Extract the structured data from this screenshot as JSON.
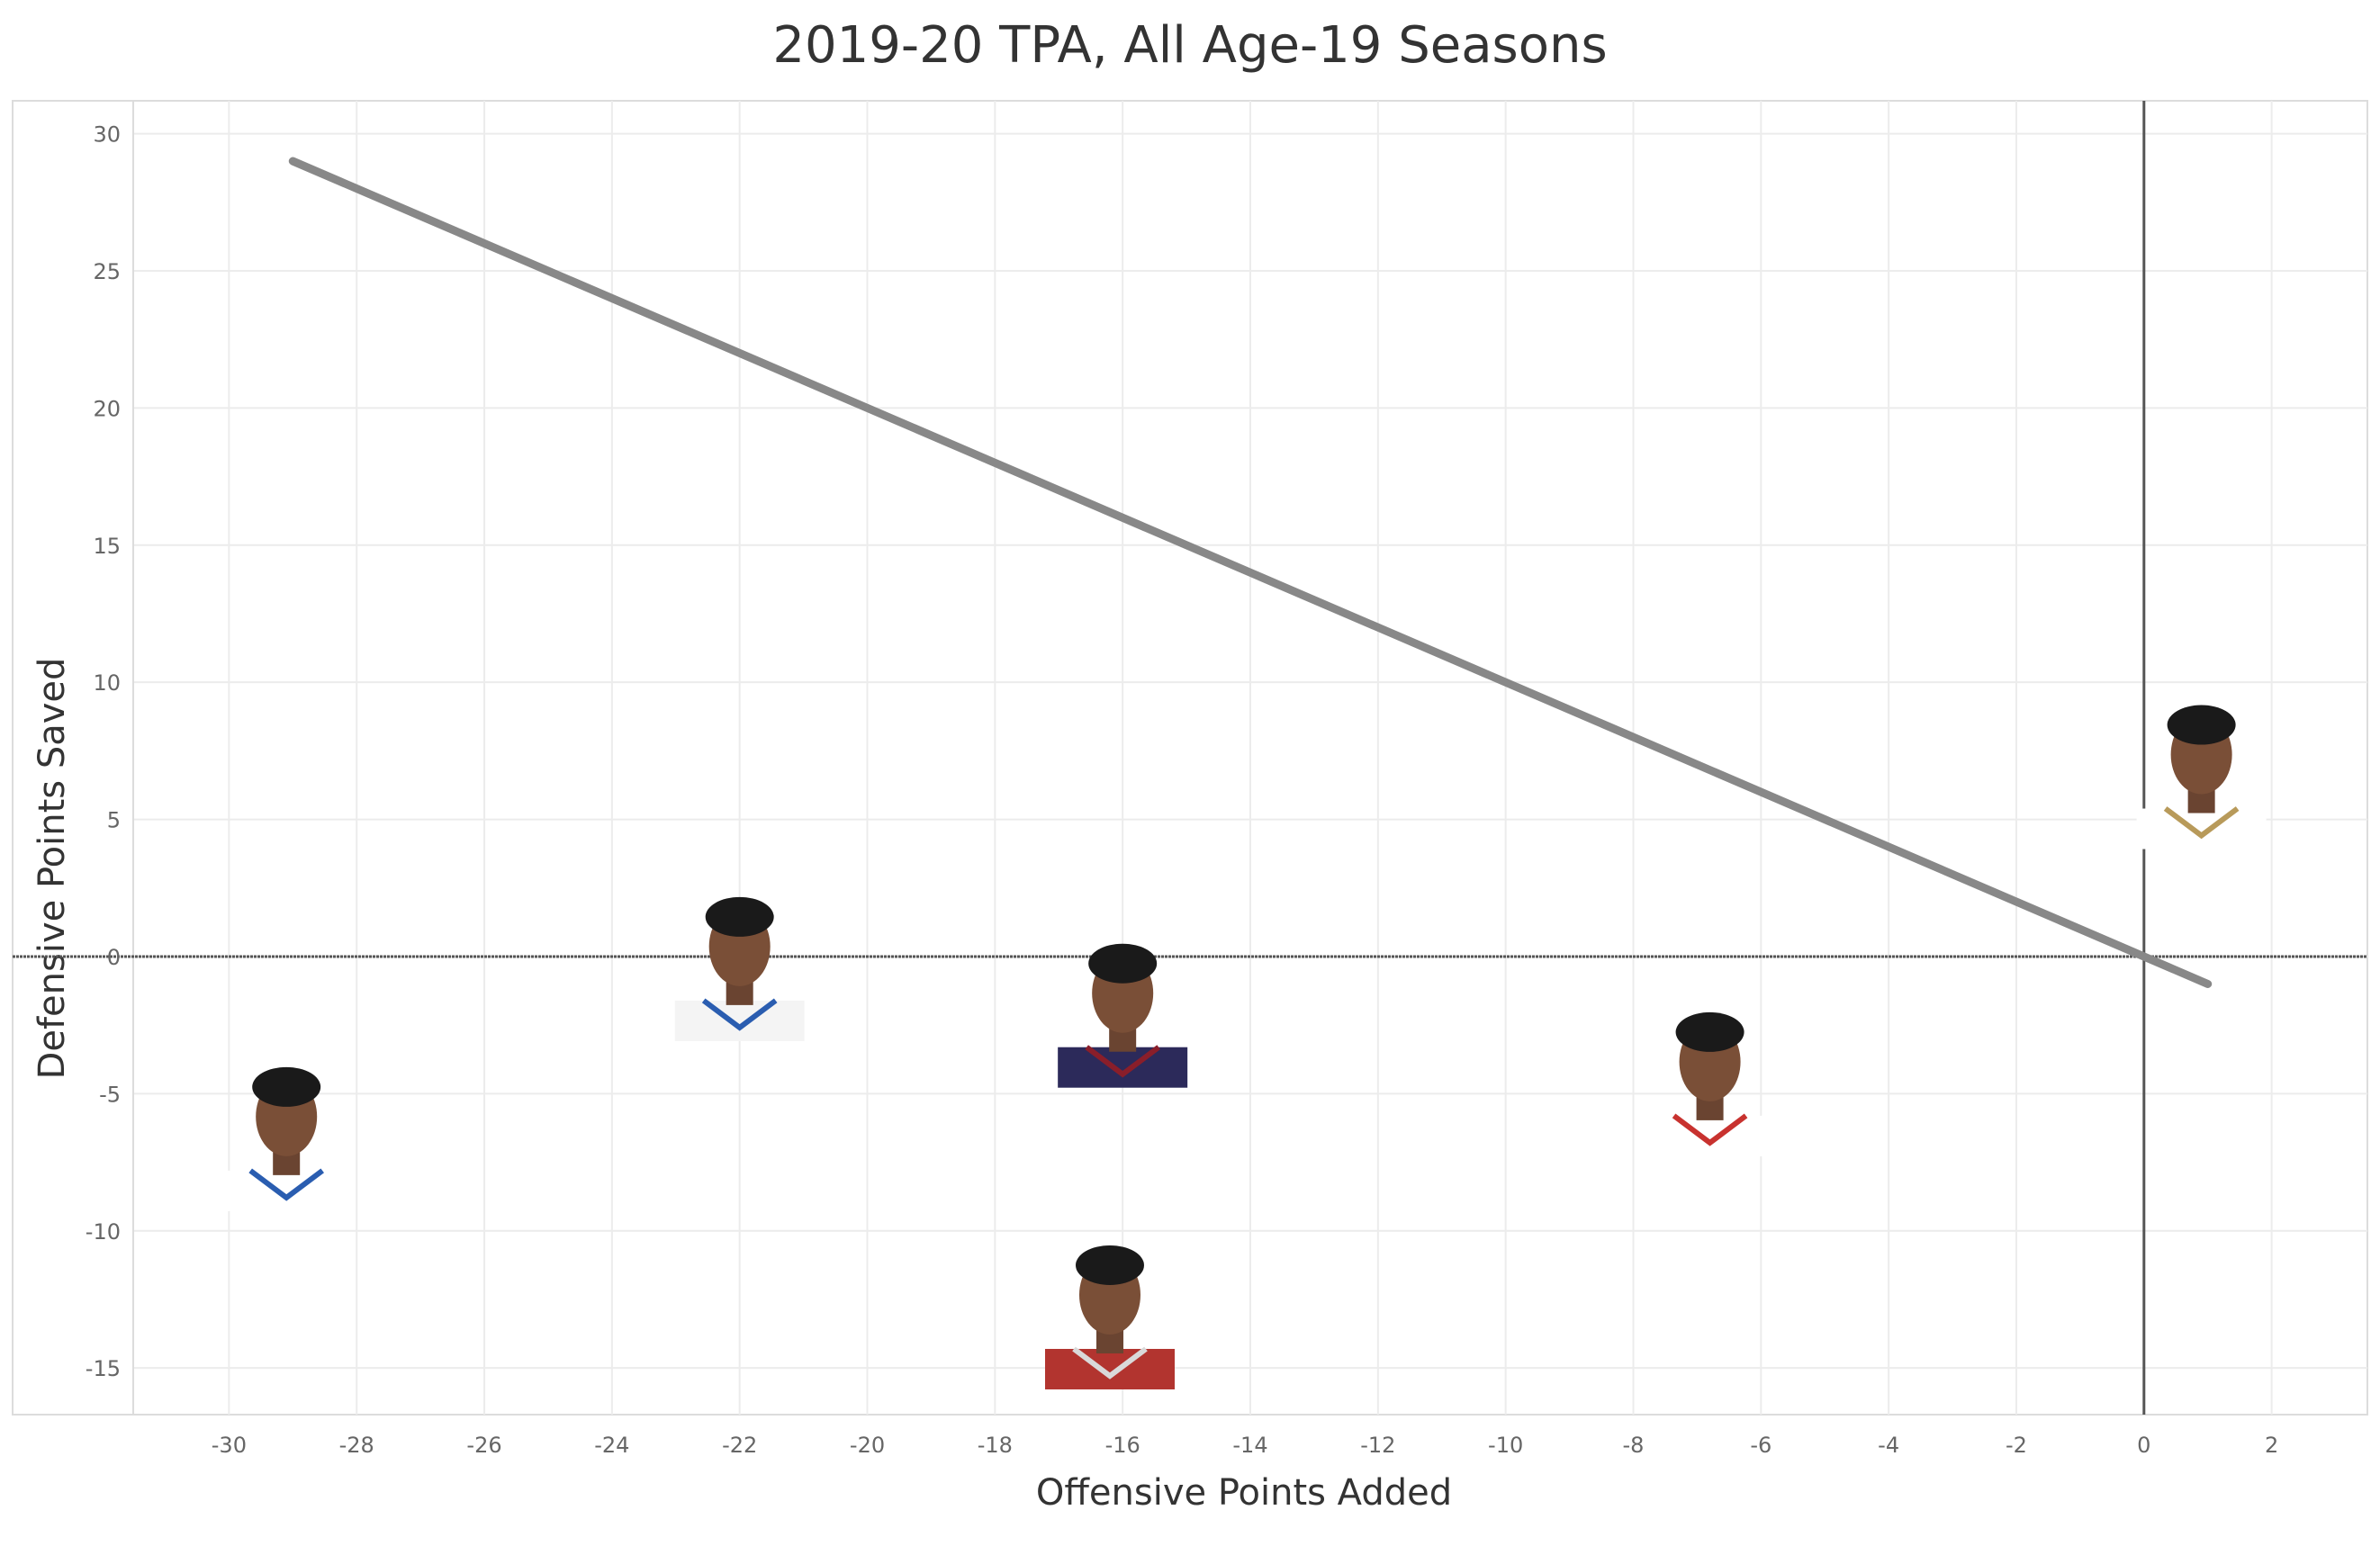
{
  "chart_data": {
    "type": "scatter",
    "title": "2019-20 TPA, All Age-19 Seasons",
    "xlabel": "Offensive Points Added",
    "ylabel": "Defensive Points Saved",
    "xlim": [
      -31.5,
      3.5
    ],
    "ylim": [
      -16.7,
      31.2
    ],
    "xticks": [
      -30,
      -28,
      -26,
      -24,
      -22,
      -20,
      -18,
      -16,
      -14,
      -12,
      -10,
      -8,
      -6,
      -4,
      -2,
      0,
      2
    ],
    "yticks": [
      -15,
      -10,
      -5,
      0,
      5,
      10,
      15,
      20,
      25,
      30
    ],
    "grid": true,
    "reference_lines": {
      "x": 0,
      "y": 0
    },
    "trend_line": {
      "x": [
        -29,
        1
      ],
      "y": [
        29,
        -1
      ]
    },
    "points": [
      {
        "x": -29.1,
        "y": -6.0,
        "marker": "player-headshot",
        "jersey": "#ffffff",
        "trim": "#2a5db0"
      },
      {
        "x": -22.0,
        "y": 0.2,
        "marker": "player-headshot",
        "jersey": "#f4f4f4",
        "trim": "#2a5db0"
      },
      {
        "x": -16.0,
        "y": -1.5,
        "marker": "player-headshot",
        "jersey": "#2c2a5a",
        "trim": "#8a1e2a"
      },
      {
        "x": -16.2,
        "y": -12.5,
        "marker": "player-headshot",
        "jersey": "#b2342f",
        "trim": "#d9d9d9"
      },
      {
        "x": -6.8,
        "y": -4.0,
        "marker": "player-headshot",
        "jersey": "#ffffff",
        "trim": "#c8322f"
      },
      {
        "x": 0.9,
        "y": 7.2,
        "marker": "player-headshot",
        "jersey": "#ffffff",
        "trim": "#b89a5a"
      }
    ]
  },
  "colors": {
    "trend": "#888888",
    "grid": "#ececec",
    "zero_line": "#555555",
    "axis_text": "#666666",
    "title_text": "#333333"
  }
}
